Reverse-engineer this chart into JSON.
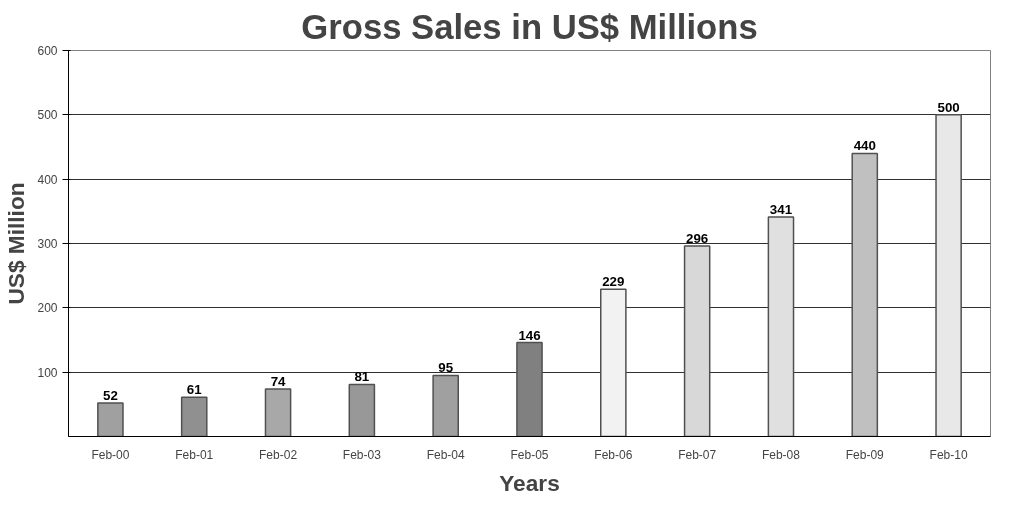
{
  "chart_data": {
    "type": "bar",
    "title": "Gross Sales in US$ Millions",
    "xlabel": "Years",
    "ylabel": "US$ Million",
    "categories": [
      "Feb-00",
      "Feb-01",
      "Feb-02",
      "Feb-03",
      "Feb-04",
      "Feb-05",
      "Feb-06",
      "Feb-07",
      "Feb-08",
      "Feb-09",
      "Feb-10"
    ],
    "values": [
      52,
      61,
      74,
      81,
      95,
      146,
      229,
      296,
      341,
      440,
      500
    ],
    "colors": [
      "#a0a0a0",
      "#909090",
      "#a8a8a8",
      "#989898",
      "#a0a0a0",
      "#808080",
      "#f2f2f2",
      "#d8d8d8",
      "#e0e0e0",
      "#c0c0c0",
      "#e8e8e8"
    ],
    "ylim": [
      0,
      600
    ],
    "yticks": [
      100,
      200,
      300,
      400,
      500,
      600
    ],
    "grid": "y",
    "data_labels": true
  }
}
